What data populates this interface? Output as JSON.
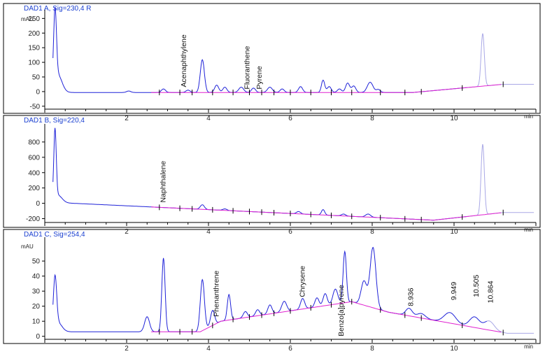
{
  "chart_data": [
    {
      "type": "line",
      "title": "DAD1 A, Sig=230,4 R",
      "ylabel": "mAU",
      "xlabel": "min",
      "xlim": [
        0,
        12
      ],
      "ylim": [
        -60,
        270
      ],
      "yticks": [
        -50,
        0,
        50,
        100,
        150,
        200,
        250
      ],
      "xticks": [
        2,
        4,
        6,
        8,
        10
      ],
      "baseline": 0,
      "drift": [
        [
          9,
          -3
        ],
        [
          11.2,
          25
        ]
      ],
      "faint_from": 10.3,
      "series": [
        {
          "peaks": [
            [
              0.25,
              245,
              0.035
            ],
            [
              0.32,
              60,
              0.1
            ],
            [
              2.05,
              5,
              0.05
            ],
            [
              2.9,
              12,
              0.05
            ],
            [
              3.5,
              8,
              0.05
            ],
            [
              3.85,
              112,
              0.05
            ],
            [
              4.2,
              25,
              0.05
            ],
            [
              4.4,
              18,
              0.05
            ],
            [
              4.8,
              18,
              0.06
            ],
            [
              5.1,
              15,
              0.05
            ],
            [
              5.5,
              18,
              0.06
            ],
            [
              5.8,
              12,
              0.05
            ],
            [
              6.25,
              20,
              0.05
            ],
            [
              6.8,
              42,
              0.04
            ],
            [
              6.95,
              20,
              0.05
            ],
            [
              7.2,
              12,
              0.05
            ],
            [
              7.4,
              32,
              0.05
            ],
            [
              7.55,
              22,
              0.05
            ],
            [
              7.95,
              35,
              0.07
            ],
            [
              8.15,
              10,
              0.05
            ],
            [
              10.7,
              180,
              0.04
            ]
          ]
        }
      ],
      "peak_labels": [
        {
          "text": "Acenaphthylene",
          "x": 3.45,
          "y": 15
        },
        {
          "text": "Fluoranthene",
          "x": 5.0,
          "y": 8
        },
        {
          "text": "Pyrene",
          "x": 5.3,
          "y": 8
        }
      ]
    },
    {
      "type": "line",
      "title": "DAD1 B, Sig=220,4",
      "ylabel": "",
      "xlabel": "min",
      "xlim": [
        0,
        12
      ],
      "ylim": [
        -250,
        1000
      ],
      "yticks": [
        -200,
        0,
        200,
        400,
        600,
        800
      ],
      "xticks": [
        2,
        4,
        6,
        8,
        10
      ],
      "baseline": 0,
      "drift": [
        [
          0.5,
          5
        ],
        [
          9.5,
          -220
        ],
        [
          11.2,
          -120
        ]
      ],
      "faint_from": 10.3,
      "series": [
        {
          "peaks": [
            [
              0.25,
              900,
              0.03
            ],
            [
              0.32,
              100,
              0.1
            ],
            [
              3.85,
              60,
              0.05
            ],
            [
              4.4,
              20,
              0.05
            ],
            [
              6.2,
              30,
              0.05
            ],
            [
              6.8,
              70,
              0.04
            ],
            [
              7.3,
              25,
              0.05
            ],
            [
              7.9,
              40,
              0.06
            ],
            [
              10.7,
              920,
              0.04
            ]
          ]
        }
      ],
      "peak_labels": [
        {
          "text": "Naphthalene",
          "x": 2.95,
          "y": 10
        }
      ]
    },
    {
      "type": "line",
      "title": "DAD1 C, Sig=254,4",
      "ylabel": "mAU",
      "xlabel": "min",
      "xlim": [
        0,
        12
      ],
      "ylim": [
        -2,
        64
      ],
      "yticks": [
        0,
        10,
        20,
        30,
        40,
        50
      ],
      "xticks": [
        2,
        4,
        6,
        8,
        10
      ],
      "baseline": 3,
      "drift": [
        [
          0.5,
          3
        ],
        [
          3.8,
          3
        ],
        [
          4.3,
          10
        ],
        [
          7.5,
          23
        ],
        [
          8.4,
          16
        ],
        [
          11.3,
          2
        ]
      ],
      "faint_from": 10.8,
      "series": [
        {
          "peaks": [
            [
              0.25,
              33,
              0.04
            ],
            [
              0.32,
              6,
              0.1
            ],
            [
              2.5,
              10,
              0.06
            ],
            [
              2.9,
              49,
              0.04
            ],
            [
              3.85,
              34,
              0.05
            ],
            [
              4.1,
              10,
              0.05
            ],
            [
              4.5,
              17,
              0.04
            ],
            [
              4.9,
              4,
              0.05
            ],
            [
              5.2,
              4,
              0.05
            ],
            [
              5.5,
              6,
              0.05
            ],
            [
              5.85,
              7,
              0.06
            ],
            [
              6.3,
              7,
              0.05
            ],
            [
              6.65,
              6,
              0.05
            ],
            [
              6.85,
              8,
              0.05
            ],
            [
              7.1,
              10,
              0.06
            ],
            [
              7.33,
              34,
              0.04
            ],
            [
              7.8,
              16,
              0.07
            ],
            [
              8.02,
              40,
              0.07
            ],
            [
              8.9,
              5,
              0.08
            ],
            [
              9.2,
              3,
              0.1
            ],
            [
              9.9,
              7,
              0.14
            ],
            [
              10.5,
              7,
              0.12
            ],
            [
              10.86,
              6,
              0.12
            ]
          ]
        }
      ],
      "peak_labels": [
        {
          "text": "Phenanthrene",
          "x": 4.25,
          "y": 13
        },
        {
          "text": "Chrysene",
          "x": 6.35,
          "y": 26
        },
        {
          "text": "Benzo[a]pyrene",
          "x": 7.3,
          "y": 0
        },
        {
          "text": "8.936",
          "x": 9.0,
          "y": 20
        },
        {
          "text": "9.949",
          "x": 10.05,
          "y": 24
        },
        {
          "text": "10.505",
          "x": 10.6,
          "y": 26
        },
        {
          "text": "10.864",
          "x": 10.95,
          "y": 22
        }
      ]
    }
  ],
  "colors": {
    "signal": "#1f22d8",
    "signal_faint": "#a9a8e6",
    "baseline": "#e022d0",
    "frame": "#000000",
    "title": "#1a3fd0",
    "tick_mark": "#000000"
  }
}
